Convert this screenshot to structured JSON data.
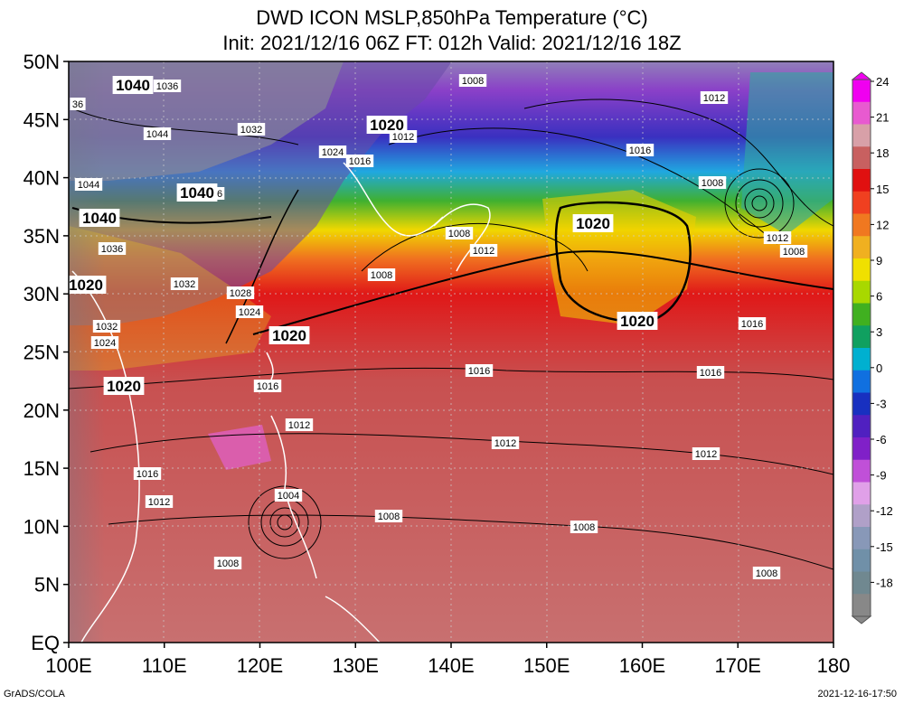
{
  "title": {
    "line1": "DWD ICON MSLP,850hPa Temperature (°C)",
    "line2": "Init: 2021/12/16 06Z  FT: 012h  Valid: 2021/12/16 18Z"
  },
  "axes": {
    "lon_labels": [
      "100E",
      "110E",
      "120E",
      "130E",
      "140E",
      "150E",
      "160E",
      "170E",
      "180"
    ],
    "lat_labels": [
      "50N",
      "45N",
      "40N",
      "35N",
      "30N",
      "25N",
      "20N",
      "15N",
      "10N",
      "5N",
      "EQ"
    ]
  },
  "colorbar": {
    "labels": [
      "24",
      "21",
      "18",
      "15",
      "12",
      "9",
      "6",
      "3",
      "0",
      "-3",
      "-6",
      "-9",
      "-12",
      "-15",
      "-18"
    ],
    "colors": [
      "#f000f0",
      "#e85ad0",
      "#d8a0a8",
      "#c86060",
      "#e01010",
      "#f04020",
      "#f07820",
      "#f0b020",
      "#f0e000",
      "#a8d800",
      "#40b020",
      "#10a060",
      "#00b0d0",
      "#1070e0",
      "#1830c0",
      "#5020c0",
      "#8020c8",
      "#c050d8",
      "#e0a0e8",
      "#b0a0c8",
      "#8898b8",
      "#7090a8",
      "#708890",
      "#888888"
    ]
  },
  "pressure_labels": [
    {
      "text": "1040",
      "big": true
    },
    {
      "text": "1036",
      "big": false
    },
    {
      "text": "36",
      "big": false
    },
    {
      "text": "1044",
      "big": false
    },
    {
      "text": "1032",
      "big": false
    },
    {
      "text": "1024",
      "big": false
    },
    {
      "text": "1016",
      "big": false
    },
    {
      "text": "1020",
      "big": true
    },
    {
      "text": "1012",
      "big": false
    },
    {
      "text": "1008",
      "big": false
    },
    {
      "text": "1012",
      "big": false
    },
    {
      "text": "1008",
      "big": false
    },
    {
      "text": "1044",
      "big": false
    },
    {
      "text": "1040",
      "big": true
    },
    {
      "text": "6",
      "big": false
    },
    {
      "text": "1016",
      "big": false
    },
    {
      "text": "1040",
      "big": true
    },
    {
      "text": "1036",
      "big": false
    },
    {
      "text": "1008",
      "big": false
    },
    {
      "text": "1012",
      "big": false
    },
    {
      "text": "1020",
      "big": true
    },
    {
      "text": "1008",
      "big": false
    },
    {
      "text": "1012",
      "big": false
    },
    {
      "text": "1008",
      "big": false
    },
    {
      "text": "1020",
      "big": true
    },
    {
      "text": "1032",
      "big": false
    },
    {
      "text": "1028",
      "big": false
    },
    {
      "text": "1024",
      "big": false
    },
    {
      "text": "1032",
      "big": false
    },
    {
      "text": "1024",
      "big": false
    },
    {
      "text": "1020",
      "big": true
    },
    {
      "text": "1020",
      "big": true
    },
    {
      "text": "1016",
      "big": false
    },
    {
      "text": "1016",
      "big": false
    },
    {
      "text": "1016",
      "big": false
    },
    {
      "text": "1016",
      "big": false
    },
    {
      "text": "1020",
      "big": true
    },
    {
      "text": "1012",
      "big": false
    },
    {
      "text": "1012",
      "big": false
    },
    {
      "text": "1012",
      "big": false
    },
    {
      "text": "1016",
      "big": false
    },
    {
      "text": "1012",
      "big": false
    },
    {
      "text": "1004",
      "big": false
    },
    {
      "text": "1008",
      "big": false
    },
    {
      "text": "1008",
      "big": false
    },
    {
      "text": "1008",
      "big": false
    },
    {
      "text": "1008",
      "big": false
    }
  ],
  "footer": {
    "credit": "GrADS/COLA",
    "timestamp": "2021-12-16-17:50"
  }
}
